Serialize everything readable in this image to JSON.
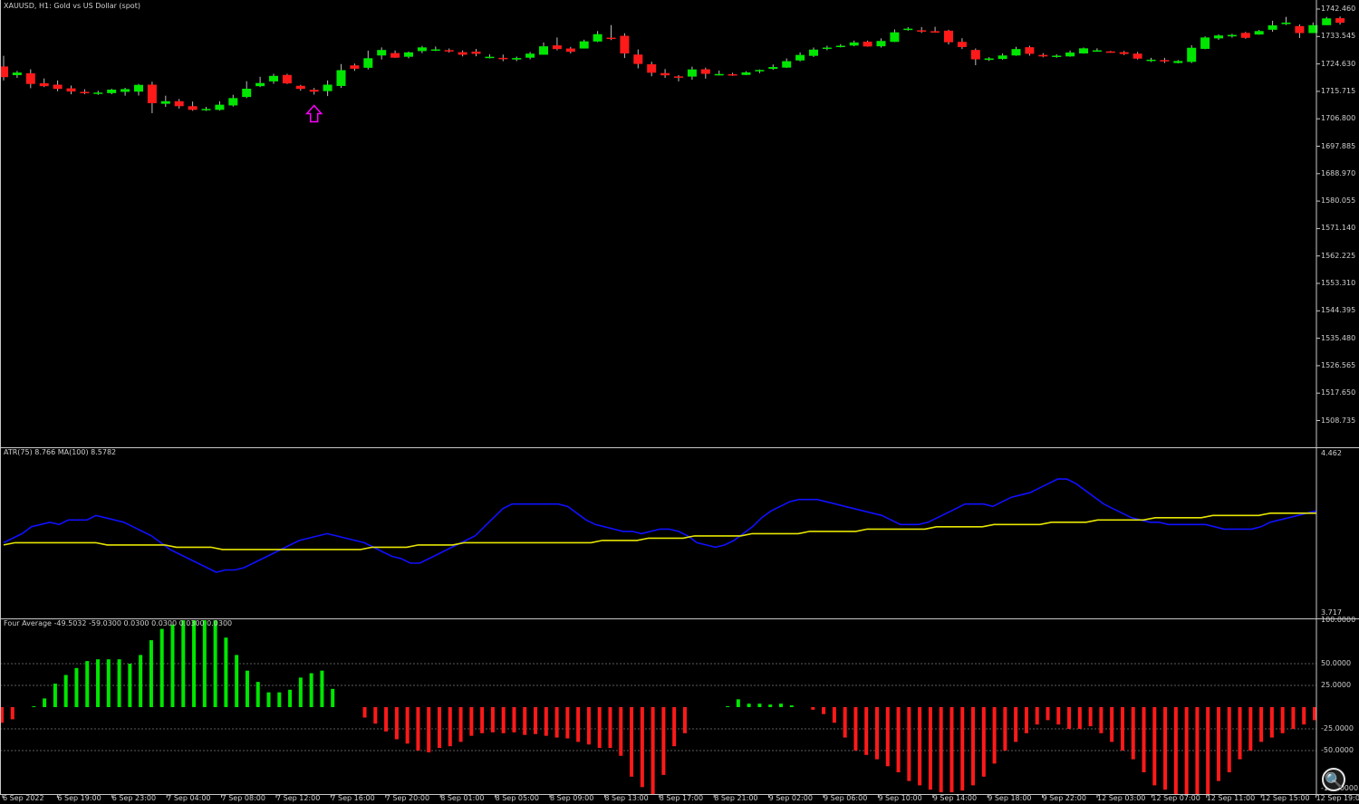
{
  "header": {
    "symbol_info": "XAUUSD, H1:  Gold vs US Dollar (spot)",
    "atr_info": "ATR(75) 8.766 MA(100) 8.5782",
    "ind_info": "Four Average -49.5032 -59.0300 0.0300 0.0300 0.0300 0.0300"
  },
  "colors": {
    "bull": "#00e600",
    "bear": "#ff1a1a",
    "atr_line": "#1010ff",
    "ma_line": "#e6e600",
    "arrow": "#ff00ff",
    "separator": "#c8c8c8"
  },
  "icons": {
    "signal_arrow": "up-arrow-outline",
    "zoom": "magnifier-icon"
  },
  "zoom_glyph": "🔍",
  "price_axis": [
    "1742.460",
    "1733.545",
    "1724.630",
    "1715.715",
    "1706.800",
    "1697.885",
    "1688.970",
    "1580.055",
    "1571.140",
    "1562.225",
    "1553.310",
    "1544.395",
    "1535.480",
    "1526.565",
    "1517.650",
    "1508.735"
  ],
  "atr_axis": [
    "4.462",
    "3.717"
  ],
  "ind_axis": [
    "100.0000",
    "50.0000",
    "25.0000",
    "-25.0000",
    "-50.0000",
    "-100.0000"
  ],
  "time_axis": [
    "6 Sep 2022",
    "6 Sep 19:00",
    "6 Sep 23:00",
    "7 Sep 04:00",
    "7 Sep 08:00",
    "7 Sep 12:00",
    "7 Sep 16:00",
    "7 Sep 20:00",
    "8 Sep 01:00",
    "8 Sep 05:00",
    "8 Sep 09:00",
    "8 Sep 13:00",
    "8 Sep 17:00",
    "8 Sep 21:00",
    "9 Sep 02:00",
    "9 Sep 06:00",
    "9 Sep 10:00",
    "9 Sep 14:00",
    "9 Sep 18:00",
    "9 Sep 22:00",
    "12 Sep 03:00",
    "12 Sep 07:00",
    "12 Sep 11:00",
    "12 Sep 15:00",
    "12 Sep 19:00"
  ],
  "chart_data": [
    {
      "type": "candlestick",
      "title": "XAUUSD, H1: Gold vs US Dollar (spot)",
      "y_range": [
        1503,
        1746
      ],
      "signal_marker": {
        "candle_index": 23,
        "direction": "up"
      },
      "candles": [
        {
          "o": 1709.8,
          "h": 1715.6,
          "l": 1702.2,
          "c": 1704.0
        },
        {
          "o": 1705.1,
          "h": 1707.4,
          "l": 1703.6,
          "c": 1706.5
        },
        {
          "o": 1706.1,
          "h": 1708.3,
          "l": 1698.0,
          "c": 1700.3
        },
        {
          "o": 1700.7,
          "h": 1703.3,
          "l": 1698.6,
          "c": 1699.1
        },
        {
          "o": 1699.9,
          "h": 1702.2,
          "l": 1696.3,
          "c": 1697.6
        },
        {
          "o": 1697.9,
          "h": 1699.4,
          "l": 1694.7,
          "c": 1696.2
        },
        {
          "o": 1696.0,
          "h": 1697.4,
          "l": 1694.7,
          "c": 1695.3
        },
        {
          "o": 1695.3,
          "h": 1696.6,
          "l": 1694.4,
          "c": 1695.6
        },
        {
          "o": 1695.3,
          "h": 1697.7,
          "l": 1694.7,
          "c": 1697.2
        },
        {
          "o": 1696.0,
          "h": 1698.2,
          "l": 1693.9,
          "c": 1697.5
        },
        {
          "o": 1696.1,
          "h": 1700.3,
          "l": 1694.0,
          "c": 1699.8
        },
        {
          "o": 1699.9,
          "h": 1701.5,
          "l": 1684.4,
          "c": 1689.8
        },
        {
          "o": 1689.5,
          "h": 1693.9,
          "l": 1687.8,
          "c": 1690.9
        },
        {
          "o": 1690.9,
          "h": 1692.1,
          "l": 1686.9,
          "c": 1688.2
        },
        {
          "o": 1688.2,
          "h": 1690.7,
          "l": 1685.7,
          "c": 1686.2
        },
        {
          "o": 1686.3,
          "h": 1687.8,
          "l": 1685.6,
          "c": 1686.7
        },
        {
          "o": 1686.2,
          "h": 1690.9,
          "l": 1685.8,
          "c": 1689.0
        },
        {
          "o": 1688.6,
          "h": 1694.4,
          "l": 1688.0,
          "c": 1692.6
        },
        {
          "o": 1693.2,
          "h": 1701.8,
          "l": 1692.6,
          "c": 1697.7
        },
        {
          "o": 1699.1,
          "h": 1704.2,
          "l": 1698.6,
          "c": 1700.8
        },
        {
          "o": 1701.7,
          "h": 1705.8,
          "l": 1700.4,
          "c": 1704.7
        },
        {
          "o": 1705.2,
          "h": 1705.8,
          "l": 1700.3,
          "c": 1700.6
        },
        {
          "o": 1699.3,
          "h": 1699.8,
          "l": 1696.6,
          "c": 1697.6
        },
        {
          "o": 1697.1,
          "h": 1698.1,
          "l": 1694.5,
          "c": 1696.1
        },
        {
          "o": 1696.4,
          "h": 1702.2,
          "l": 1693.7,
          "c": 1699.9
        },
        {
          "o": 1699.2,
          "h": 1711.1,
          "l": 1698.1,
          "c": 1707.8
        },
        {
          "o": 1710.4,
          "h": 1711.4,
          "l": 1707.4,
          "c": 1708.6
        },
        {
          "o": 1709.1,
          "h": 1718.4,
          "l": 1708.2,
          "c": 1714.3
        },
        {
          "o": 1715.8,
          "h": 1720.2,
          "l": 1713.6,
          "c": 1718.8
        },
        {
          "o": 1717.1,
          "h": 1718.5,
          "l": 1714.5,
          "c": 1714.6
        },
        {
          "o": 1715.1,
          "h": 1717.9,
          "l": 1714.3,
          "c": 1717.5
        },
        {
          "o": 1718.2,
          "h": 1721.0,
          "l": 1717.1,
          "c": 1720.2
        },
        {
          "o": 1719.1,
          "h": 1720.7,
          "l": 1718.2,
          "c": 1719.1
        },
        {
          "o": 1718.7,
          "h": 1719.6,
          "l": 1717.4,
          "c": 1718.0
        },
        {
          "o": 1717.6,
          "h": 1718.6,
          "l": 1715.3,
          "c": 1716.2
        },
        {
          "o": 1717.9,
          "h": 1719.3,
          "l": 1715.4,
          "c": 1716.7
        },
        {
          "o": 1714.9,
          "h": 1716.4,
          "l": 1714.2,
          "c": 1715.1
        },
        {
          "o": 1714.5,
          "h": 1716.3,
          "l": 1712.7,
          "c": 1713.8
        },
        {
          "o": 1713.6,
          "h": 1715.2,
          "l": 1712.7,
          "c": 1714.4
        },
        {
          "o": 1714.6,
          "h": 1717.7,
          "l": 1713.7,
          "c": 1716.8
        },
        {
          "o": 1716.2,
          "h": 1722.9,
          "l": 1716.3,
          "c": 1720.8
        },
        {
          "o": 1721.3,
          "h": 1725.6,
          "l": 1718.6,
          "c": 1719.3
        },
        {
          "o": 1719.6,
          "h": 1720.5,
          "l": 1716.9,
          "c": 1717.8
        },
        {
          "o": 1719.6,
          "h": 1724.4,
          "l": 1719.6,
          "c": 1723.5
        },
        {
          "o": 1723.4,
          "h": 1729.1,
          "l": 1723.1,
          "c": 1727.4
        },
        {
          "o": 1725.5,
          "h": 1732.3,
          "l": 1724.2,
          "c": 1725.3
        },
        {
          "o": 1726.5,
          "h": 1727.9,
          "l": 1714.4,
          "c": 1716.9
        },
        {
          "o": 1716.3,
          "h": 1719.1,
          "l": 1708.8,
          "c": 1711.2
        },
        {
          "o": 1711.0,
          "h": 1712.4,
          "l": 1704.5,
          "c": 1706.4
        },
        {
          "o": 1706.2,
          "h": 1708.4,
          "l": 1703.6,
          "c": 1705.0
        },
        {
          "o": 1704.4,
          "h": 1705.1,
          "l": 1701.7,
          "c": 1703.8
        },
        {
          "o": 1704.3,
          "h": 1709.7,
          "l": 1702.6,
          "c": 1708.2
        },
        {
          "o": 1708.3,
          "h": 1709.2,
          "l": 1703.2,
          "c": 1705.8
        },
        {
          "o": 1705.5,
          "h": 1707.6,
          "l": 1704.9,
          "c": 1705.7
        },
        {
          "o": 1705.6,
          "h": 1706.4,
          "l": 1704.7,
          "c": 1705.2
        },
        {
          "o": 1705.2,
          "h": 1707.2,
          "l": 1705.1,
          "c": 1706.6
        },
        {
          "o": 1707.4,
          "h": 1708.2,
          "l": 1706.2,
          "c": 1707.9
        },
        {
          "o": 1708.5,
          "h": 1710.9,
          "l": 1708.0,
          "c": 1709.5
        },
        {
          "o": 1709.2,
          "h": 1714.2,
          "l": 1709.0,
          "c": 1712.7
        },
        {
          "o": 1713.1,
          "h": 1717.5,
          "l": 1712.6,
          "c": 1716.1
        },
        {
          "o": 1715.6,
          "h": 1720.1,
          "l": 1715.0,
          "c": 1719.0
        },
        {
          "o": 1719.6,
          "h": 1721.1,
          "l": 1718.7,
          "c": 1720.1
        },
        {
          "o": 1720.7,
          "h": 1722.0,
          "l": 1720.2,
          "c": 1721.1
        },
        {
          "o": 1721.2,
          "h": 1723.9,
          "l": 1720.8,
          "c": 1722.9
        },
        {
          "o": 1723.3,
          "h": 1723.9,
          "l": 1720.6,
          "c": 1720.7
        },
        {
          "o": 1720.8,
          "h": 1725.1,
          "l": 1720.1,
          "c": 1723.7
        },
        {
          "o": 1723.2,
          "h": 1730.0,
          "l": 1723.1,
          "c": 1728.4
        },
        {
          "o": 1729.9,
          "h": 1731.2,
          "l": 1729.3,
          "c": 1730.4
        },
        {
          "o": 1729.5,
          "h": 1731.3,
          "l": 1728.1,
          "c": 1729.3
        },
        {
          "o": 1729.0,
          "h": 1731.4,
          "l": 1728.2,
          "c": 1728.8
        },
        {
          "o": 1729.3,
          "h": 1729.8,
          "l": 1721.8,
          "c": 1723.0
        },
        {
          "o": 1723.2,
          "h": 1725.2,
          "l": 1719.3,
          "c": 1720.4
        },
        {
          "o": 1718.8,
          "h": 1719.6,
          "l": 1710.5,
          "c": 1713.7
        },
        {
          "o": 1713.4,
          "h": 1714.9,
          "l": 1712.8,
          "c": 1714.2
        },
        {
          "o": 1713.9,
          "h": 1716.9,
          "l": 1713.5,
          "c": 1715.8
        },
        {
          "o": 1715.8,
          "h": 1720.5,
          "l": 1715.6,
          "c": 1719.3
        },
        {
          "o": 1720.3,
          "h": 1721.1,
          "l": 1715.7,
          "c": 1716.7
        },
        {
          "o": 1716.1,
          "h": 1717.1,
          "l": 1714.8,
          "c": 1715.3
        },
        {
          "o": 1715.3,
          "h": 1716.4,
          "l": 1714.6,
          "c": 1715.7
        },
        {
          "o": 1715.3,
          "h": 1718.5,
          "l": 1715.1,
          "c": 1717.4
        },
        {
          "o": 1716.9,
          "h": 1720.1,
          "l": 1716.8,
          "c": 1719.7
        },
        {
          "o": 1718.2,
          "h": 1719.7,
          "l": 1718.0,
          "c": 1718.6
        },
        {
          "o": 1718.0,
          "h": 1718.3,
          "l": 1717.3,
          "c": 1717.4
        },
        {
          "o": 1717.6,
          "h": 1718.3,
          "l": 1716.0,
          "c": 1716.6
        },
        {
          "o": 1716.8,
          "h": 1717.7,
          "l": 1713.6,
          "c": 1714.1
        },
        {
          "o": 1713.4,
          "h": 1714.5,
          "l": 1712.3,
          "c": 1713.5
        },
        {
          "o": 1713.3,
          "h": 1714.5,
          "l": 1711.7,
          "c": 1713.0
        },
        {
          "o": 1711.7,
          "h": 1713.3,
          "l": 1711.5,
          "c": 1712.8
        },
        {
          "o": 1712.3,
          "h": 1721.4,
          "l": 1711.7,
          "c": 1720.0
        },
        {
          "o": 1719.4,
          "h": 1726.2,
          "l": 1719.2,
          "c": 1725.6
        },
        {
          "o": 1725.1,
          "h": 1727.3,
          "l": 1724.3,
          "c": 1726.7
        },
        {
          "o": 1726.2,
          "h": 1727.6,
          "l": 1725.5,
          "c": 1727.0
        },
        {
          "o": 1728.1,
          "h": 1728.6,
          "l": 1724.9,
          "c": 1725.4
        },
        {
          "o": 1727.2,
          "h": 1729.7,
          "l": 1727.1,
          "c": 1729.1
        },
        {
          "o": 1729.8,
          "h": 1734.7,
          "l": 1728.7,
          "c": 1732.2
        },
        {
          "o": 1732.9,
          "h": 1736.8,
          "l": 1732.4,
          "c": 1733.7
        },
        {
          "o": 1731.8,
          "h": 1732.7,
          "l": 1725.3,
          "c": 1728.0
        },
        {
          "o": 1728.0,
          "h": 1733.8,
          "l": 1728.0,
          "c": 1732.3
        },
        {
          "o": 1732.3,
          "h": 1736.8,
          "l": 1732.3,
          "c": 1736.0
        },
        {
          "o": 1736.1,
          "h": 1737.0,
          "l": 1732.6,
          "c": 1733.6
        }
      ]
    },
    {
      "type": "line",
      "title": "ATR(75) 8.766 MA(100) 8.5782",
      "y_range": [
        3.717,
        4.462
      ],
      "series": [
        {
          "name": "ATR(75)",
          "values": [
            4.05,
            4.07,
            4.09,
            4.12,
            4.13,
            4.14,
            4.13,
            4.15,
            4.15,
            4.15,
            4.17,
            4.16,
            4.15,
            4.14,
            4.12,
            4.1,
            4.08,
            4.05,
            4.02,
            4.0,
            3.98,
            3.96,
            3.94,
            3.92,
            3.93,
            3.93,
            3.94,
            3.96,
            3.98,
            4.0,
            4.02,
            4.04,
            4.06,
            4.07,
            4.08,
            4.09,
            4.08,
            4.07,
            4.06,
            4.05,
            4.03,
            4.01,
            3.99,
            3.98,
            3.96,
            3.96,
            3.98,
            4.0,
            4.02,
            4.04,
            4.06,
            4.08,
            4.12,
            4.16,
            4.2,
            4.22,
            4.22,
            4.22,
            4.22,
            4.22,
            4.22,
            4.21,
            4.18,
            4.15,
            4.13,
            4.12,
            4.11,
            4.1,
            4.1,
            4.09,
            4.1,
            4.11,
            4.11,
            4.1,
            4.08,
            4.05,
            4.04,
            4.03,
            4.04,
            4.06,
            4.09,
            4.12,
            4.16,
            4.19,
            4.21,
            4.23,
            4.24,
            4.24,
            4.24,
            4.23,
            4.22,
            4.21,
            4.2,
            4.19,
            4.18,
            4.17,
            4.15,
            4.13,
            4.13,
            4.13,
            4.14,
            4.16,
            4.18,
            4.2,
            4.22,
            4.22,
            4.22,
            4.21,
            4.23,
            4.25,
            4.26,
            4.27,
            4.29,
            4.31,
            4.33,
            4.33,
            4.31,
            4.28,
            4.25,
            4.22,
            4.2,
            4.18,
            4.16,
            4.15,
            4.14,
            4.14,
            4.13,
            4.13,
            4.13,
            4.13,
            4.13,
            4.12,
            4.11,
            4.11,
            4.11,
            4.11,
            4.12,
            4.14,
            4.15,
            4.16,
            4.17,
            4.18,
            4.19
          ]
        },
        {
          "name": "MA(100)",
          "values": [
            4.04,
            4.05,
            4.05,
            4.05,
            4.05,
            4.05,
            4.05,
            4.05,
            4.05,
            4.04,
            4.04,
            4.04,
            4.04,
            4.04,
            4.04,
            4.03,
            4.03,
            4.03,
            4.03,
            4.02,
            4.02,
            4.02,
            4.02,
            4.02,
            4.02,
            4.02,
            4.02,
            4.02,
            4.02,
            4.02,
            4.02,
            4.02,
            4.03,
            4.03,
            4.03,
            4.03,
            4.04,
            4.04,
            4.04,
            4.04,
            4.05,
            4.05,
            4.05,
            4.05,
            4.05,
            4.05,
            4.05,
            4.05,
            4.05,
            4.05,
            4.05,
            4.05,
            4.06,
            4.06,
            4.06,
            4.06,
            4.07,
            4.07,
            4.07,
            4.07,
            4.08,
            4.08,
            4.08,
            4.08,
            4.08,
            4.09,
            4.09,
            4.09,
            4.09,
            4.09,
            4.1,
            4.1,
            4.1,
            4.1,
            4.1,
            4.11,
            4.11,
            4.11,
            4.11,
            4.11,
            4.11,
            4.12,
            4.12,
            4.12,
            4.12,
            4.12,
            4.13,
            4.13,
            4.13,
            4.13,
            4.13,
            4.14,
            4.14,
            4.14,
            4.14,
            4.15,
            4.15,
            4.15,
            4.15,
            4.15,
            4.16,
            4.16,
            4.16,
            4.16,
            4.16,
            4.17,
            4.17,
            4.17,
            4.17,
            4.17,
            4.18,
            4.18,
            4.18,
            4.18,
            4.18
          ]
        }
      ]
    },
    {
      "type": "bar",
      "title": "Four Average",
      "y_range": [
        -100,
        100
      ],
      "levels": [
        50,
        25,
        -25,
        -50
      ],
      "values": [
        -18,
        -14,
        0,
        1,
        10,
        27,
        37,
        45,
        53,
        55,
        55,
        55,
        50,
        60,
        77,
        90,
        95,
        100,
        100,
        100,
        100,
        80,
        60,
        42,
        29,
        17,
        17,
        20,
        34,
        39,
        42,
        21,
        0,
        0,
        -12,
        -19,
        -28,
        -37,
        -42,
        -50,
        -52,
        -47,
        -45,
        -40,
        -33,
        -30,
        -29,
        -30,
        -29,
        -32,
        -31,
        -33,
        -35,
        -36,
        -40,
        -43,
        -47,
        -47,
        -56,
        -80,
        -92,
        -100,
        -78,
        -45,
        -30,
        0,
        0,
        0,
        1,
        9,
        4,
        4,
        3,
        4,
        2,
        0,
        -3,
        -8,
        -18,
        -35,
        -50,
        -55,
        -60,
        -68,
        -75,
        -85,
        -90,
        -95,
        -98,
        -98,
        -96,
        -90,
        -80,
        -65,
        -50,
        -40,
        -30,
        -20,
        -15,
        -20,
        -25,
        -25,
        -22,
        -30,
        -40,
        -50,
        -60,
        -75,
        -90,
        -95,
        -100,
        -100,
        -100,
        -100,
        -85,
        -75,
        -60,
        -50,
        -40,
        -35,
        -30,
        -25,
        -20,
        -15
      ]
    }
  ]
}
